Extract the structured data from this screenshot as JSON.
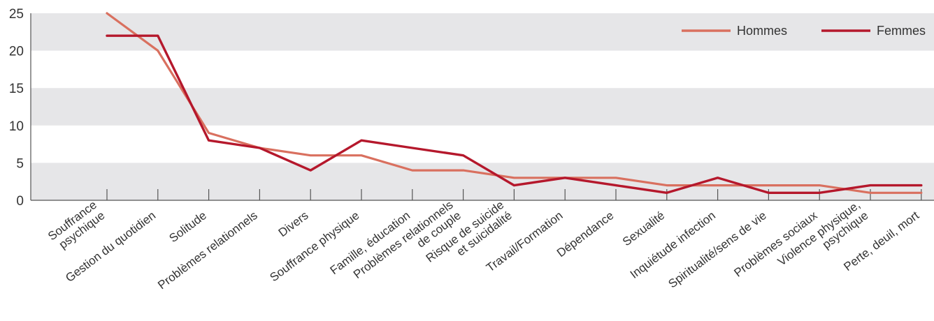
{
  "chart_data": {
    "type": "line",
    "categories": [
      [
        "Souffrance",
        "psychique"
      ],
      [
        "Gestion du quotidien"
      ],
      [
        "Solitude"
      ],
      [
        "Problèmes relationnels"
      ],
      [
        "Divers"
      ],
      [
        "Souffrance physique"
      ],
      [
        "Famille, éducation"
      ],
      [
        "Problèmes relationnels",
        "de couple"
      ],
      [
        "Risque de suicide",
        "et suicidalité"
      ],
      [
        "Travail/Formation"
      ],
      [
        "Dépendance"
      ],
      [
        "Sexualité"
      ],
      [
        "Inquiétude infection"
      ],
      [
        "Spiritualité/sens de vie"
      ],
      [
        "Problèmes sociaux"
      ],
      [
        "Violence physique,",
        "psychique"
      ],
      [
        "Perte, deuil, mort"
      ]
    ],
    "series": [
      {
        "name": "Hommes",
        "color": "#d9705f",
        "values": [
          25,
          20,
          9,
          7,
          6,
          6,
          4,
          4,
          3,
          3,
          3,
          2,
          2,
          2,
          2,
          1,
          1
        ]
      },
      {
        "name": "Femmes",
        "color": "#b5182c",
        "values": [
          22,
          22,
          8,
          7,
          4,
          8,
          7,
          6,
          2,
          3,
          2,
          1,
          3,
          1,
          1,
          2,
          2
        ]
      }
    ],
    "ylim": [
      0,
      25
    ],
    "yticks": [
      0,
      5,
      10,
      15,
      20,
      25
    ],
    "xlabel": "",
    "ylabel": "",
    "grid": "alternating horizontal bands",
    "band_color": "#e6e6e8",
    "axis_color": "#555555",
    "legend": "top-right"
  }
}
